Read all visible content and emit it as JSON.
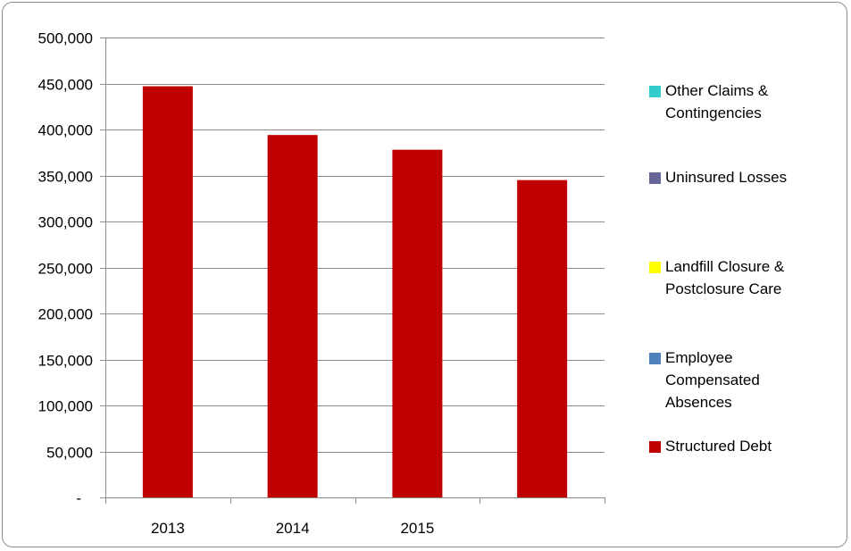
{
  "chart_data": {
    "type": "bar",
    "categories": [
      "2013",
      "2014",
      "2015",
      ""
    ],
    "series": [
      {
        "name": "Other Claims & Contingencies",
        "color": "#33cccc",
        "values": [
          0,
          0,
          0,
          0
        ]
      },
      {
        "name": "Uninsured Losses",
        "color": "#666699",
        "values": [
          0,
          0,
          0,
          0
        ]
      },
      {
        "name": "Landfill Closure & Postclosure Care",
        "color": "#ffff00",
        "values": [
          0,
          0,
          0,
          0
        ]
      },
      {
        "name": "Employee Compensated Absences",
        "color": "#4f81bd",
        "values": [
          0,
          0,
          0,
          0
        ]
      },
      {
        "name": "Structured Debt",
        "color": "#c00000",
        "values": [
          447000,
          394000,
          378000,
          345000
        ]
      }
    ],
    "ylim": [
      0,
      500000
    ],
    "yticks": [
      "-",
      "50,000",
      "100,000",
      "150,000",
      "200,000",
      "250,000",
      "300,000",
      "350,000",
      "400,000",
      "450,000",
      "500,000"
    ],
    "grid": true,
    "legend_position": "right",
    "stacked": true
  },
  "legend": {
    "items": [
      {
        "label_lines": [
          "Other Claims &",
          "Contingencies"
        ],
        "color": "#33cccc"
      },
      {
        "label_lines": [
          "Uninsured Losses"
        ],
        "color": "#666699"
      },
      {
        "label_lines": [
          "Landfill Closure &",
          "Postclosure Care"
        ],
        "color": "#ffff00"
      },
      {
        "label_lines": [
          "Employee",
          "Compensated",
          "Absences"
        ],
        "color": "#4f81bd"
      },
      {
        "label_lines": [
          "Structured Debt"
        ],
        "color": "#c00000"
      }
    ]
  }
}
